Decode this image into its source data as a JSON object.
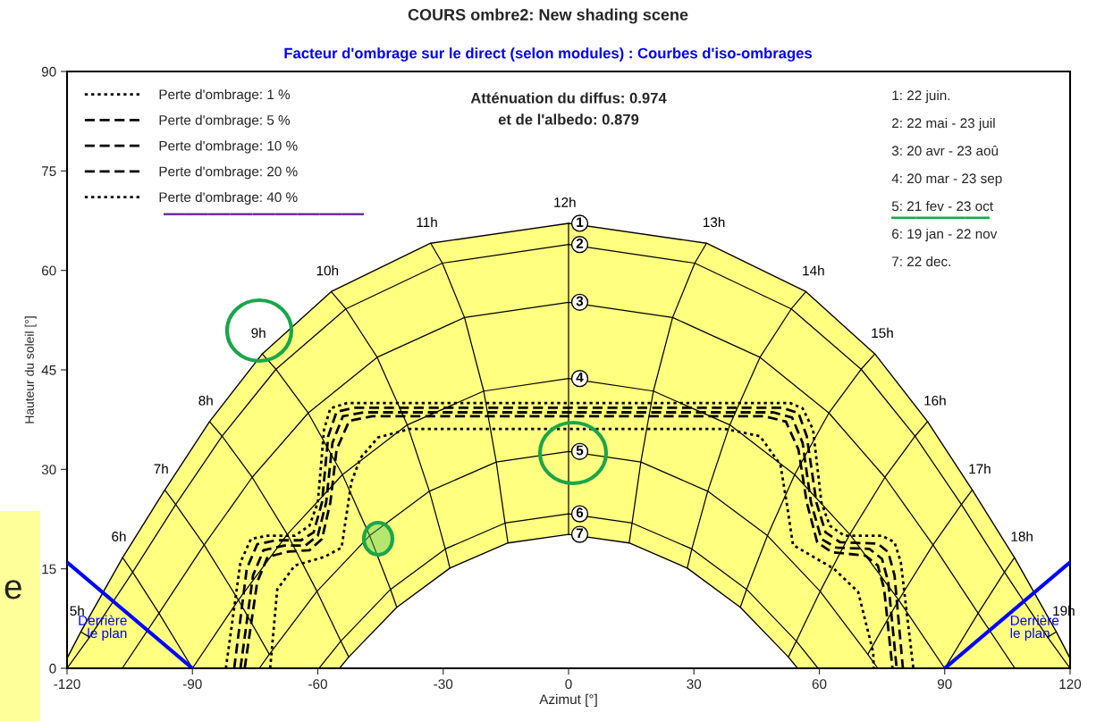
{
  "chart_data": {
    "type": "line",
    "title": "COURS ombre2: New shading scene",
    "subtitle": "Facteur d'ombrage sur le direct (selon modules) : Courbes d'iso-ombrages",
    "xlabel": "Azimut [°]",
    "ylabel": "Hauteur du soleil [°]",
    "xlim": [
      -120,
      120
    ],
    "xticks": [
      -120,
      -90,
      -60,
      -30,
      0,
      30,
      60,
      90,
      120
    ],
    "ylim": [
      0,
      90
    ],
    "yticks": [
      0,
      15,
      30,
      45,
      60,
      75,
      90
    ],
    "legend": "top left",
    "series": [
      {
        "name": "1",
        "type": "area",
        "color": "#ffff80",
        "x": [
          -120,
          -116.7,
          -106.7,
          -96.6,
          -85.9,
          -73.3,
          -56.8,
          -33.0,
          0,
          33.0,
          56.8,
          73.3,
          85.9,
          96.6,
          106.7,
          116.7,
          120
        ],
        "values": [
          1.5,
          5.5,
          16.7,
          26.9,
          37.2,
          47.4,
          56.8,
          64.1,
          67.1,
          64.1,
          56.8,
          47.4,
          37.2,
          26.9,
          16.7,
          5.5,
          1.5
        ]
      },
      {
        "name": "7",
        "type": "area",
        "color": "#ffffff",
        "x": [
          -54.8,
          -52.6,
          -41.1,
          -28.4,
          -14.5,
          0,
          14.5,
          28.4,
          41.1,
          52.6,
          54.8
        ],
        "values": [
          0,
          1.7,
          9.2,
          15.1,
          18.9,
          20.2,
          18.9,
          15.1,
          9.2,
          1.7,
          0
        ]
      },
      {
        "name": "2",
        "color": "#000000",
        "x": [
          -120,
          -114.6,
          -104.3,
          -94.0,
          -82.9,
          -70.0,
          -53.3,
          -30.2,
          0,
          30.2,
          53.3,
          70.0,
          82.9,
          94.0,
          104.3,
          114.6,
          120
        ],
        "values": [
          0,
          4.7,
          14.5,
          24.7,
          35.0,
          45.1,
          54.2,
          61.1,
          63.9,
          61.1,
          54.2,
          45.1,
          35.0,
          24.7,
          14.5,
          4.7,
          0
        ]
      },
      {
        "name": "3",
        "color": "#000000",
        "x": [
          -106.8,
          -98.0,
          -87.2,
          -75.7,
          -62.3,
          -45.8,
          -24.9,
          0,
          24.9,
          45.8,
          62.3,
          75.7,
          87.2,
          98.0,
          106.8
        ],
        "values": [
          0,
          8.3,
          18.6,
          28.8,
          38.5,
          46.9,
          52.9,
          55.2,
          52.9,
          46.9,
          38.5,
          28.8,
          18.6,
          8.3,
          0
        ]
      },
      {
        "name": "4",
        "color": "#000000",
        "x": [
          -90,
          -79.0,
          -67.3,
          -54.1,
          -38.6,
          -20.3,
          0,
          20.3,
          38.6,
          54.1,
          67.3,
          79.0,
          90
        ],
        "values": [
          0,
          10.3,
          20.2,
          29.2,
          36.7,
          41.8,
          43.7,
          41.8,
          36.7,
          29.2,
          20.2,
          10.3,
          0
        ]
      },
      {
        "name": "5",
        "color": "#000000",
        "x": [
          -74.0,
          -71.6,
          -60.2,
          -47.6,
          -33.3,
          -17.3,
          0,
          17.3,
          33.3,
          47.6,
          60.2,
          71.6,
          74.0
        ],
        "values": [
          0,
          2.1,
          11.6,
          20.0,
          26.7,
          31.1,
          32.7,
          31.1,
          26.7,
          20.0,
          11.6,
          2.1,
          0
        ]
      },
      {
        "name": "6",
        "color": "#000000",
        "x": [
          -59.7,
          -54.5,
          -42.6,
          -29.5,
          -15.2,
          0,
          15.2,
          29.5,
          42.6,
          54.5,
          59.7
        ],
        "values": [
          0,
          4.1,
          11.9,
          18.0,
          21.9,
          23.3,
          21.9,
          18.0,
          11.9,
          4.1,
          0
        ]
      },
      {
        "name": "12h",
        "color": "#000000",
        "x": [
          0,
          0,
          0,
          0,
          0,
          0,
          0
        ],
        "values": [
          67.1,
          63.9,
          55.2,
          43.7,
          32.7,
          23.3,
          20.2
        ]
      },
      {
        "name": "11h",
        "color": "#000000",
        "x": [
          -33.0,
          -30.2,
          -24.9,
          -20.3,
          -17.3,
          -15.2,
          -14.5
        ],
        "values": [
          64.1,
          61.1,
          52.9,
          41.8,
          31.1,
          21.9,
          18.9
        ]
      },
      {
        "name": "13h",
        "color": "#000000",
        "x": [
          33.0,
          30.2,
          24.9,
          20.3,
          17.3,
          15.2,
          14.5
        ],
        "values": [
          64.1,
          61.1,
          52.9,
          41.8,
          31.1,
          21.9,
          18.9
        ]
      },
      {
        "name": "10h",
        "color": "#000000",
        "x": [
          -56.8,
          -53.3,
          -45.8,
          -38.6,
          -33.3,
          -29.5,
          -28.4
        ],
        "values": [
          56.8,
          54.2,
          46.9,
          36.7,
          26.7,
          18.0,
          15.1
        ]
      },
      {
        "name": "14h",
        "color": "#000000",
        "x": [
          56.8,
          53.3,
          45.8,
          38.6,
          33.3,
          29.5,
          28.4
        ],
        "values": [
          56.8,
          54.2,
          46.9,
          36.7,
          26.7,
          18.0,
          15.1
        ]
      },
      {
        "name": "9h",
        "color": "#000000",
        "x": [
          -73.3,
          -70.0,
          -62.3,
          -54.1,
          -47.6,
          -42.6,
          -41.1
        ],
        "values": [
          47.4,
          45.1,
          38.5,
          29.2,
          20.0,
          11.9,
          9.2
        ]
      },
      {
        "name": "15h",
        "color": "#000000",
        "x": [
          73.3,
          70.0,
          62.3,
          54.1,
          47.6,
          42.6,
          41.1
        ],
        "values": [
          47.4,
          45.1,
          38.5,
          29.2,
          20.0,
          11.9,
          9.2
        ]
      },
      {
        "name": "8h",
        "color": "#000000",
        "x": [
          -85.9,
          -82.9,
          -75.7,
          -67.3,
          -60.2,
          -54.5,
          -52.6
        ],
        "values": [
          37.2,
          35.0,
          28.8,
          20.2,
          11.6,
          4.1,
          1.7
        ]
      },
      {
        "name": "16h",
        "color": "#000000",
        "x": [
          85.9,
          82.9,
          75.7,
          67.3,
          60.2,
          54.5,
          52.6
        ],
        "values": [
          37.2,
          35.0,
          28.8,
          20.2,
          11.6,
          4.1,
          1.7
        ]
      },
      {
        "name": "7h",
        "color": "#000000",
        "x": [
          -96.6,
          -94.0,
          -87.2,
          -79.0,
          -71.6
        ],
        "values": [
          26.9,
          24.7,
          18.6,
          10.3,
          2.1
        ]
      },
      {
        "name": "17h",
        "color": "#000000",
        "x": [
          96.6,
          94.0,
          87.2,
          79.0,
          71.6
        ],
        "values": [
          26.9,
          24.7,
          18.6,
          10.3,
          2.1
        ]
      },
      {
        "name": "6h",
        "color": "#000000",
        "x": [
          -106.7,
          -104.3,
          -98.0,
          -90
        ],
        "values": [
          16.7,
          14.5,
          8.3,
          0
        ]
      },
      {
        "name": "18h",
        "color": "#000000",
        "x": [
          106.7,
          104.3,
          98.0,
          90
        ],
        "values": [
          16.7,
          14.5,
          8.3,
          0
        ]
      },
      {
        "name": "5h",
        "color": "#000000",
        "x": [
          -116.7,
          -114.6
        ],
        "values": [
          5.5,
          4.7
        ]
      },
      {
        "name": "19h",
        "color": "#000000",
        "x": [
          116.7,
          114.6
        ],
        "values": [
          5.5,
          4.7
        ]
      },
      {
        "name": "Perte d'ombrage: 1 %",
        "color": "#000000",
        "line_style": "dotted",
        "x": [
          -82,
          -78.5,
          -76,
          -72,
          -65.5,
          -62,
          -60,
          -58.5,
          -57,
          -53,
          53,
          56,
          58.5,
          60.5,
          62.5,
          66,
          75,
          78,
          79.5,
          82.5
        ],
        "values": [
          0,
          16,
          19.5,
          20,
          20,
          21.5,
          25,
          36,
          39.2,
          40,
          40,
          39.2,
          36,
          25,
          21.5,
          20,
          20,
          19,
          16,
          0
        ]
      },
      {
        "name": "Perte d'ombrage: 5 %",
        "color": "#000000",
        "line_style": "dashed",
        "x": [
          -80,
          -77,
          -74.5,
          -70,
          -64,
          -61,
          -59,
          -57.5,
          -55.5,
          -51,
          51,
          55,
          57,
          59.3,
          61.5,
          65,
          74,
          76.5,
          78,
          80
        ],
        "values": [
          0,
          15,
          18.7,
          19.3,
          19.3,
          20.5,
          25,
          35,
          38.7,
          39.3,
          39.3,
          38.5,
          35,
          25,
          20.5,
          19,
          18.8,
          17.5,
          14,
          0
        ]
      },
      {
        "name": "Perte d'ombrage: 10 %",
        "color": "#000000",
        "line_style": "dashed",
        "x": [
          -78.5,
          -75.5,
          -73,
          -68,
          -63,
          -60,
          -58,
          -56.5,
          -54,
          -49,
          49,
          53.5,
          56,
          58,
          60.5,
          64,
          72,
          75,
          76.5,
          78.5
        ],
        "values": [
          0,
          14,
          17.8,
          18.5,
          18.5,
          20,
          25,
          34,
          38,
          38.6,
          38.6,
          37.8,
          34,
          25,
          19.5,
          18.2,
          18,
          16.5,
          13,
          0
        ]
      },
      {
        "name": "Perte d'ombrage: 20 %",
        "color": "#000000",
        "line_style": "dashed",
        "x": [
          -77.5,
          -74.5,
          -72,
          -67,
          -62,
          -59,
          -57,
          -55.5,
          -52.5,
          -47,
          47,
          52,
          55,
          57,
          59.5,
          63,
          71,
          74,
          75.5,
          77.5
        ],
        "values": [
          0,
          13,
          16.8,
          17.6,
          17.8,
          19.5,
          25,
          33,
          37.3,
          38.0,
          38.0,
          37.2,
          33,
          25,
          19,
          17.5,
          17,
          15.5,
          12,
          0
        ]
      },
      {
        "name": "Perte d'ombrage: 40 %",
        "color": "#000000",
        "line_style": "dotted",
        "x": [
          -71.4,
          -69.7,
          -65.5,
          -58.4,
          -54.3,
          -52,
          -49.8,
          -45.6,
          -38,
          37.4,
          45.8,
          50.7,
          52.2,
          53.7,
          63.5,
          69.3,
          72.9,
          73
        ],
        "values": [
          0,
          11.9,
          15.5,
          16.8,
          18.2,
          28,
          31.7,
          34.8,
          36.1,
          36.1,
          35,
          30.7,
          24.9,
          18.6,
          15.0,
          11.5,
          2.4,
          0
        ]
      },
      {
        "name": "Derrière\nle plan",
        "color": "#0000ff",
        "x": [
          -120,
          -90
        ],
        "values": [
          16,
          0
        ]
      },
      {
        "name": "Derrière\nle plan",
        "color": "#0000ff",
        "x": [
          90,
          120
        ],
        "values": [
          0,
          16
        ]
      }
    ],
    "annotations": [
      "Atténuation du diffus: 0.974\net de l'albedo: 0.879",
      "1: 22 juin.",
      "2: 22 mai - 23 juil",
      "3: 20 avr - 23 aoû",
      "4: 20 mar - 23 sep",
      "5: 21 fev - 23 oct",
      "6: 19 jan - 22 nov",
      "7: 22 dec.",
      "e"
    ]
  }
}
